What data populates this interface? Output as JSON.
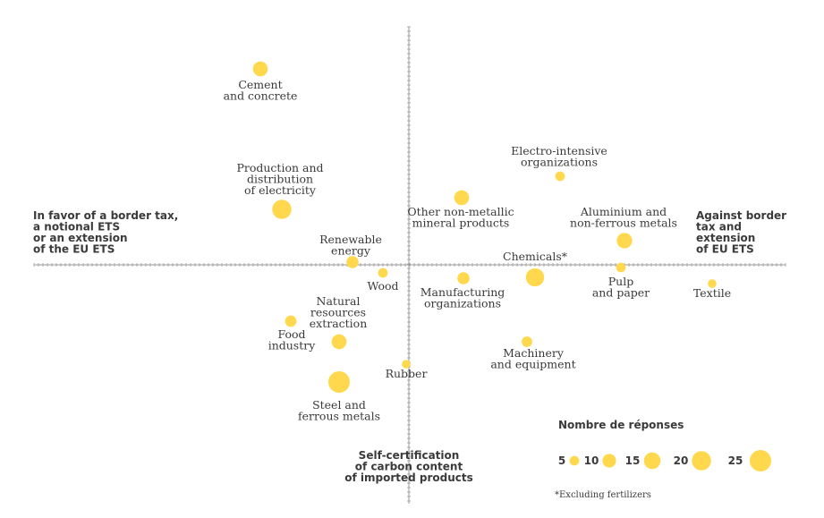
{
  "chart_data": {
    "type": "scatter",
    "bubble_color": "#FFD84D",
    "axis_color": "#999999",
    "axis_labels": {
      "left": [
        "In favor of a border tax,",
        "a notional ETS",
        "or an extension",
        "of the EU ETS"
      ],
      "right": [
        "Against border",
        "tax and",
        "extension",
        "of EU ETS"
      ],
      "bottom": [
        "Self-certification",
        "of carbon content",
        "of imported products"
      ]
    },
    "points": [
      {
        "label": [
          "Cement",
          "and concrete"
        ],
        "size": 12
      },
      {
        "label": [
          "Production and",
          "distribution",
          "of electricity"
        ],
        "size": 20
      },
      {
        "label": [
          "Electro-intensive",
          "organizations"
        ],
        "size": 5
      },
      {
        "label": [
          "Other non-metallic",
          "mineral products"
        ],
        "size": 12
      },
      {
        "label": [
          "Aluminium and",
          "non-ferrous metals"
        ],
        "size": 13
      },
      {
        "label": [
          "Renewable",
          "energy"
        ],
        "size": 8
      },
      {
        "label": [
          "Wood"
        ],
        "size": 5
      },
      {
        "label": [
          "Chemicals*"
        ],
        "size": 18
      },
      {
        "label": [
          "Manufacturing",
          "organizations"
        ],
        "size": 8
      },
      {
        "label": [
          "Pulp",
          "and paper"
        ],
        "size": 5
      },
      {
        "label": [
          "Textile"
        ],
        "size": 4
      },
      {
        "label": [
          "Natural",
          "resources",
          "extraction"
        ],
        "size": 12
      },
      {
        "label": [
          "Food",
          "industry"
        ],
        "size": 7
      },
      {
        "label": [
          "Machinery",
          "and equipment"
        ],
        "size": 6
      },
      {
        "label": [
          "Rubber"
        ],
        "size": 4
      },
      {
        "label": [
          "Steel and",
          "ferrous metals"
        ],
        "size": 25
      }
    ],
    "legend": {
      "title": "Nombre de réponses",
      "sizes": [
        5,
        10,
        15,
        20,
        25
      ]
    },
    "footnote": "*Excluding fertilizers"
  }
}
